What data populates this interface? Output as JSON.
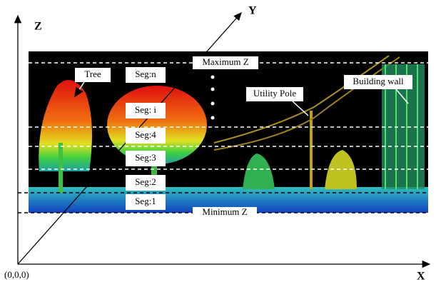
{
  "axes": {
    "z": "Z",
    "y": "Y",
    "x": "X",
    "origin": "(0,0,0)"
  },
  "levels": {
    "max": "Maximum Z",
    "min": "Minimum Z"
  },
  "labels": {
    "tree": "Tree",
    "pole": "Utility Pole",
    "wall": "Building wall"
  },
  "segments": [
    "Seg:n",
    "Seg: i",
    "Seg:4",
    "Seg:3",
    "Seg:2",
    "Seg:1"
  ]
}
